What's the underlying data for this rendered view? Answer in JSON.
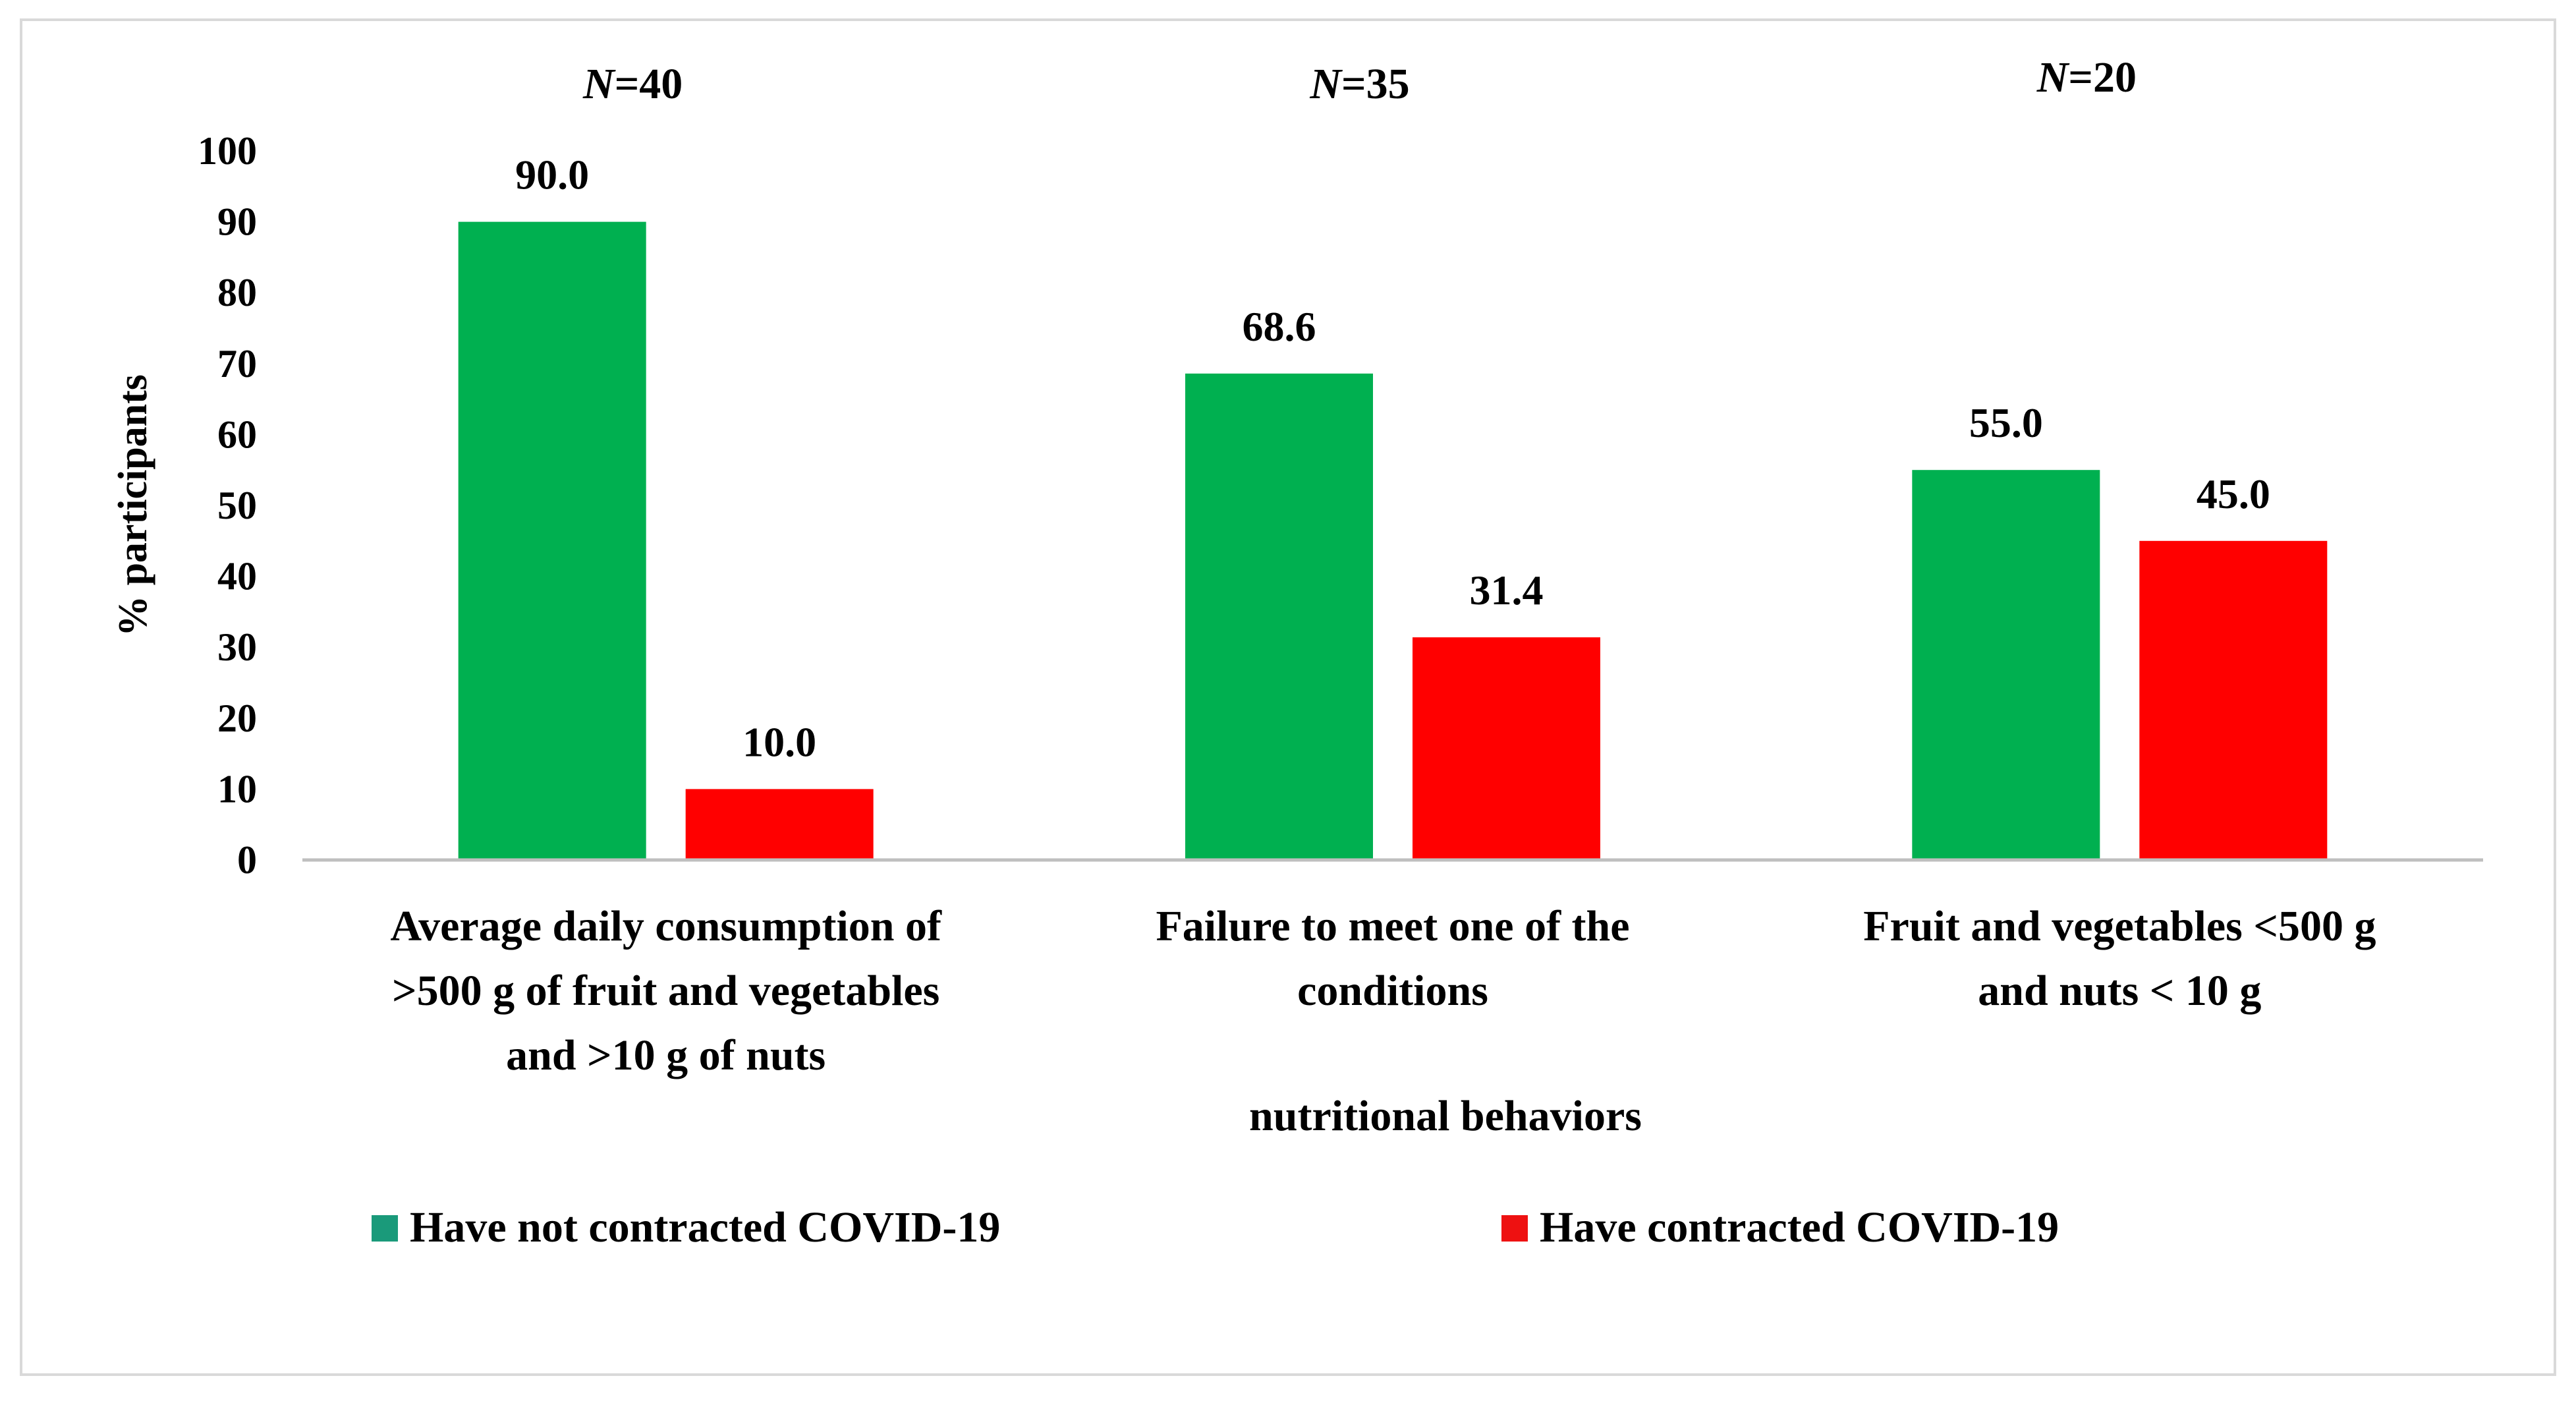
{
  "chart_data": {
    "type": "bar",
    "title": "",
    "xlabel": "nutritional behaviors",
    "ylabel": "% participants",
    "ylim": [
      0,
      100
    ],
    "yticks": [
      "0",
      "10",
      "20",
      "30",
      "40",
      "50",
      "60",
      "70",
      "80",
      "90",
      "100"
    ],
    "grid": false,
    "legend_position": "bottom",
    "categories": [
      [
        "Average daily consumption of",
        ">500 g of fruit and vegetables",
        "and >10 g of nuts"
      ],
      [
        "Failure to meet one of the",
        "conditions"
      ],
      [
        "Fruit and vegetables <500 g",
        "and nuts < 10 g"
      ]
    ],
    "group_n_prefix": "N",
    "group_n_values": [
      "=40",
      "=35",
      "=20"
    ],
    "series": [
      {
        "name": "Have not contracted COVID-19",
        "color": "#00b050",
        "legend_color": "#1a9a7a",
        "values": [
          90.0,
          68.6,
          55.0
        ],
        "labels": [
          "90.0",
          "68.6",
          "55.0"
        ]
      },
      {
        "name": "Have contracted COVID-19",
        "color": "#ff0000",
        "legend_color": "#ee1111",
        "values": [
          10.0,
          31.4,
          45.0
        ],
        "labels": [
          "10.0",
          "31.4",
          "45.0"
        ]
      }
    ]
  }
}
